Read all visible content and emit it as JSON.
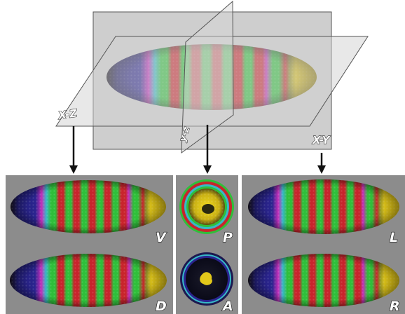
{
  "colors": {
    "plane_fill": "#c9c9c9",
    "plane_stroke": "#555555",
    "panel_bg": "#8c8c8c",
    "stripe_yellow": "#e2c81a",
    "stripe_blue": "#23208f",
    "stripe_magenta": "#c42fbb",
    "stripe_cyan": "#37b9c7",
    "stripe_green": "#2fbf3a",
    "stripe_red": "#c8242c",
    "arrow": "#111111"
  },
  "planes": {
    "xz_label": "X-Z",
    "yz_label": "y-z",
    "xy_label": "X-Y"
  },
  "panels": {
    "left": {
      "top_label": "V",
      "bottom_label": "D"
    },
    "middle": {
      "top_label": "P",
      "bottom_label": "A"
    },
    "right": {
      "top_label": "L",
      "bottom_label": "R"
    }
  }
}
